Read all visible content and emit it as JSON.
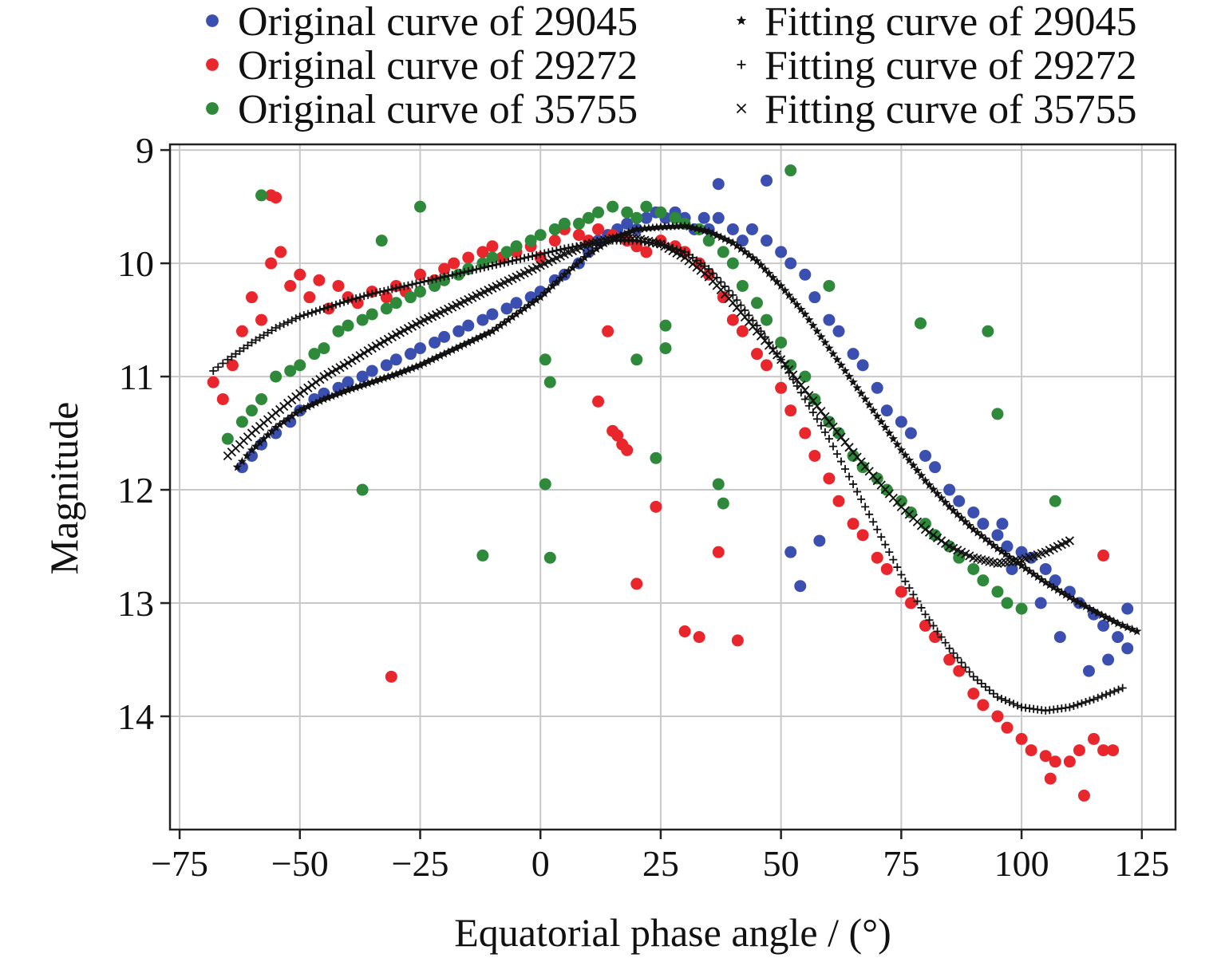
{
  "chart_data": {
    "type": "scatter",
    "xlabel": "Equatorial phase angle / (°)",
    "ylabel": "Magnitude",
    "xlim": [
      -77,
      132
    ],
    "ylim": [
      15.0,
      8.95
    ],
    "y_inverted": true,
    "grid": true,
    "xticks": [
      -75,
      -50,
      -25,
      0,
      25,
      50,
      75,
      100,
      125
    ],
    "xtick_labels": [
      "−75",
      "−50",
      "−25",
      "0",
      "25",
      "50",
      "75",
      "100",
      "125"
    ],
    "yticks": [
      9,
      10,
      11,
      12,
      13,
      14
    ],
    "ytick_labels": [
      "9",
      "10",
      "11",
      "12",
      "13",
      "14"
    ],
    "legend_position": "top, above plot, two columns",
    "series": [
      {
        "name": "Original curve of 29045",
        "kind": "observed",
        "color": "#3a4fb0",
        "marker": "circle",
        "x": [
          -62,
          -60,
          -58,
          -55,
          -52,
          -50,
          -47,
          -45,
          -42,
          -40,
          -37,
          -35,
          -32,
          -30,
          -27,
          -25,
          -22,
          -20,
          -17,
          -15,
          -12,
          -10,
          -7,
          -5,
          -2,
          0,
          3,
          5,
          8,
          10,
          12,
          14,
          16,
          18,
          20,
          22,
          24,
          26,
          28,
          30,
          32,
          34,
          35,
          37,
          40,
          42,
          44,
          47,
          50,
          52,
          55,
          57,
          60,
          62,
          65,
          67,
          70,
          72,
          75,
          77,
          80,
          82,
          85,
          87,
          90,
          92,
          95,
          97,
          100,
          102,
          105,
          107,
          110,
          112,
          115,
          117,
          120,
          122,
          122,
          118,
          114,
          108,
          104,
          98,
          96,
          52,
          54,
          58,
          47,
          37
        ],
        "y": [
          11.8,
          11.7,
          11.6,
          11.5,
          11.4,
          11.3,
          11.2,
          11.15,
          11.1,
          11.05,
          11.0,
          10.95,
          10.9,
          10.85,
          10.8,
          10.75,
          10.7,
          10.65,
          10.6,
          10.55,
          10.5,
          10.45,
          10.4,
          10.35,
          10.3,
          10.25,
          10.15,
          10.1,
          10.0,
          9.9,
          9.8,
          9.75,
          9.7,
          9.65,
          9.7,
          9.6,
          9.55,
          9.6,
          9.55,
          9.6,
          9.7,
          9.6,
          9.7,
          9.6,
          9.7,
          9.8,
          9.7,
          9.8,
          9.9,
          10.0,
          10.1,
          10.3,
          10.5,
          10.6,
          10.8,
          10.9,
          11.1,
          11.3,
          11.4,
          11.5,
          11.7,
          11.8,
          12.0,
          12.1,
          12.2,
          12.3,
          12.4,
          12.5,
          12.55,
          12.6,
          12.7,
          12.8,
          12.9,
          13.0,
          13.1,
          13.2,
          13.3,
          13.4,
          13.05,
          13.5,
          13.6,
          13.3,
          13.0,
          12.7,
          12.3,
          12.55,
          12.85,
          12.45,
          9.27,
          9.3
        ]
      },
      {
        "name": "Original curve of 29272",
        "kind": "observed",
        "color": "#e8262c",
        "marker": "circle",
        "x": [
          -68,
          -66,
          -64,
          -62,
          -60,
          -58,
          -56,
          -54,
          -52,
          -50,
          -48,
          -46,
          -44,
          -42,
          -40,
          -38,
          -35,
          -32,
          -30,
          -28,
          -25,
          -22,
          -20,
          -18,
          -15,
          -12,
          -10,
          -8,
          -5,
          -2,
          0,
          3,
          5,
          8,
          10,
          12,
          15,
          18,
          20,
          22,
          25,
          28,
          30,
          33,
          35,
          38,
          40,
          42,
          45,
          47,
          50,
          52,
          55,
          57,
          60,
          62,
          65,
          67,
          70,
          72,
          75,
          77,
          80,
          82,
          85,
          87,
          90,
          92,
          95,
          97,
          100,
          102,
          105,
          107,
          110,
          112,
          115,
          117,
          119,
          -56,
          -55,
          -31,
          12,
          15,
          16,
          17,
          18,
          20,
          24,
          30,
          33,
          37,
          41,
          14,
          106,
          113,
          117
        ],
        "y": [
          11.05,
          11.2,
          10.9,
          10.6,
          10.3,
          10.5,
          10.0,
          9.9,
          10.2,
          10.1,
          10.3,
          10.15,
          10.4,
          10.2,
          10.3,
          10.35,
          10.25,
          10.3,
          10.2,
          10.25,
          10.1,
          10.15,
          10.05,
          10.0,
          9.95,
          9.9,
          9.85,
          9.95,
          9.9,
          9.85,
          9.95,
          9.8,
          9.7,
          9.75,
          9.8,
          9.7,
          9.75,
          9.8,
          9.85,
          9.9,
          9.8,
          9.85,
          9.9,
          10.0,
          10.1,
          10.3,
          10.5,
          10.6,
          10.8,
          10.9,
          11.1,
          11.3,
          11.5,
          11.7,
          11.9,
          12.1,
          12.3,
          12.4,
          12.6,
          12.7,
          12.9,
          13.0,
          13.2,
          13.3,
          13.5,
          13.6,
          13.8,
          13.9,
          14.0,
          14.1,
          14.2,
          14.3,
          14.35,
          14.4,
          14.4,
          14.3,
          14.2,
          14.3,
          14.3,
          9.4,
          9.42,
          13.65,
          11.22,
          11.48,
          11.52,
          11.6,
          11.65,
          12.83,
          12.15,
          13.25,
          13.3,
          12.55,
          13.33,
          10.6,
          14.55,
          14.7,
          12.58
        ],
        "note_dummy": ""
      },
      {
        "name": "Original curve of 35755",
        "kind": "observed",
        "color": "#2e8a3a",
        "marker": "circle",
        "x": [
          -65,
          -62,
          -60,
          -58,
          -55,
          -52,
          -50,
          -47,
          -45,
          -42,
          -40,
          -37,
          -35,
          -32,
          -30,
          -27,
          -25,
          -22,
          -20,
          -17,
          -15,
          -12,
          -10,
          -7,
          -5,
          -2,
          0,
          3,
          5,
          8,
          10,
          12,
          15,
          18,
          20,
          22,
          25,
          28,
          30,
          33,
          35,
          38,
          40,
          42,
          45,
          47,
          50,
          52,
          55,
          57,
          60,
          62,
          65,
          67,
          70,
          72,
          75,
          77,
          80,
          82,
          85,
          87,
          90,
          92,
          95,
          97,
          100,
          -58,
          -25,
          -33,
          -37,
          -12,
          1,
          2,
          1,
          2,
          20,
          24,
          26,
          26,
          37,
          38,
          52,
          79,
          93,
          95,
          107,
          60
        ],
        "y": [
          11.55,
          11.4,
          11.3,
          11.2,
          11.0,
          10.95,
          10.9,
          10.8,
          10.75,
          10.6,
          10.55,
          10.5,
          10.45,
          10.4,
          10.35,
          10.3,
          10.25,
          10.2,
          10.15,
          10.1,
          10.05,
          10.0,
          9.95,
          9.9,
          9.85,
          9.8,
          9.75,
          9.7,
          9.65,
          9.65,
          9.6,
          9.55,
          9.5,
          9.55,
          9.6,
          9.5,
          9.55,
          9.6,
          9.65,
          9.7,
          9.8,
          9.9,
          10.0,
          10.2,
          10.35,
          10.5,
          10.7,
          10.9,
          11.0,
          11.2,
          11.4,
          11.5,
          11.7,
          11.8,
          11.9,
          12.0,
          12.1,
          12.2,
          12.3,
          12.4,
          12.5,
          12.6,
          12.7,
          12.8,
          12.9,
          13.0,
          13.05,
          9.4,
          9.5,
          9.8,
          12.0,
          12.58,
          11.95,
          12.6,
          10.85,
          11.05,
          10.85,
          11.72,
          10.55,
          10.75,
          11.95,
          12.12,
          9.18,
          10.53,
          10.6,
          11.33,
          12.1,
          10.2
        ]
      },
      {
        "name": "Fitting curve of 29045",
        "kind": "fit",
        "color": "#111111",
        "marker": "star",
        "x": [
          -63,
          -60,
          -55,
          -50,
          -45,
          -40,
          -35,
          -30,
          -25,
          -20,
          -15,
          -10,
          -5,
          0,
          5,
          10,
          15,
          20,
          25,
          30,
          35,
          40,
          45,
          50,
          55,
          60,
          65,
          70,
          75,
          80,
          85,
          90,
          95,
          100,
          105,
          110,
          115,
          120,
          124
        ],
        "y": [
          11.8,
          11.65,
          11.45,
          11.3,
          11.2,
          11.12,
          11.05,
          10.98,
          10.9,
          10.8,
          10.7,
          10.6,
          10.45,
          10.3,
          10.1,
          9.92,
          9.78,
          9.7,
          9.68,
          9.67,
          9.72,
          9.82,
          9.98,
          10.2,
          10.45,
          10.75,
          11.05,
          11.35,
          11.65,
          11.92,
          12.15,
          12.35,
          12.52,
          12.67,
          12.82,
          12.95,
          13.07,
          13.18,
          13.25
        ]
      },
      {
        "name": "Fitting curve of 29272",
        "kind": "fit",
        "color": "#111111",
        "marker": "plus",
        "x": [
          -68,
          -65,
          -60,
          -55,
          -50,
          -45,
          -40,
          -35,
          -30,
          -25,
          -20,
          -15,
          -10,
          -5,
          0,
          5,
          10,
          15,
          20,
          25,
          30,
          35,
          40,
          45,
          50,
          55,
          60,
          65,
          70,
          75,
          80,
          85,
          90,
          95,
          100,
          105,
          110,
          115,
          121
        ],
        "y": [
          10.95,
          10.85,
          10.7,
          10.57,
          10.47,
          10.4,
          10.33,
          10.27,
          10.22,
          10.17,
          10.12,
          10.07,
          10.02,
          9.97,
          9.92,
          9.87,
          9.83,
          9.8,
          9.8,
          9.83,
          9.9,
          10.05,
          10.28,
          10.55,
          10.85,
          11.2,
          11.55,
          11.95,
          12.35,
          12.75,
          13.1,
          13.4,
          13.65,
          13.83,
          13.92,
          13.95,
          13.92,
          13.85,
          13.75
        ]
      },
      {
        "name": "Fitting curve of 35755",
        "kind": "fit",
        "color": "#111111",
        "marker": "x",
        "x": [
          -65,
          -60,
          -55,
          -50,
          -45,
          -40,
          -35,
          -30,
          -25,
          -20,
          -15,
          -10,
          -5,
          0,
          5,
          10,
          15,
          20,
          25,
          30,
          35,
          40,
          45,
          50,
          55,
          60,
          65,
          70,
          75,
          80,
          85,
          90,
          95,
          100,
          105,
          110
        ],
        "y": [
          11.7,
          11.5,
          11.32,
          11.15,
          11.0,
          10.88,
          10.75,
          10.63,
          10.52,
          10.42,
          10.32,
          10.22,
          10.12,
          10.02,
          9.92,
          9.83,
          9.78,
          9.78,
          9.83,
          9.95,
          10.12,
          10.35,
          10.6,
          10.85,
          11.12,
          11.4,
          11.67,
          11.92,
          12.15,
          12.35,
          12.5,
          12.6,
          12.65,
          12.62,
          12.55,
          12.45
        ]
      }
    ]
  }
}
